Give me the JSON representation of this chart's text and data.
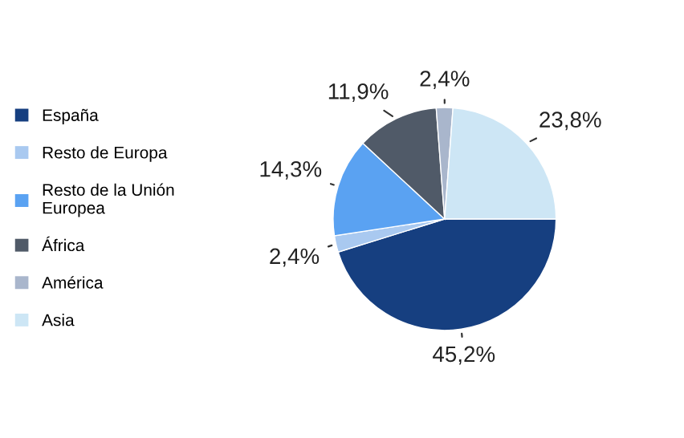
{
  "chart_data": {
    "type": "pie",
    "categories": [
      "España",
      "Resto de Europa",
      "Resto de la Unión\nEuropea",
      "África",
      "América",
      "Asia"
    ],
    "values": [
      45.2,
      2.4,
      14.3,
      11.9,
      2.4,
      23.8
    ],
    "colors": [
      "#163f80",
      "#a9c9f0",
      "#5aa2f2",
      "#505a68",
      "#a9b6cc",
      "#cde6f5"
    ],
    "value_labels": [
      "45,2%",
      "2,4%",
      "14,3%",
      "11,9%",
      "2,4%",
      "23,8%"
    ],
    "legend": "left"
  }
}
